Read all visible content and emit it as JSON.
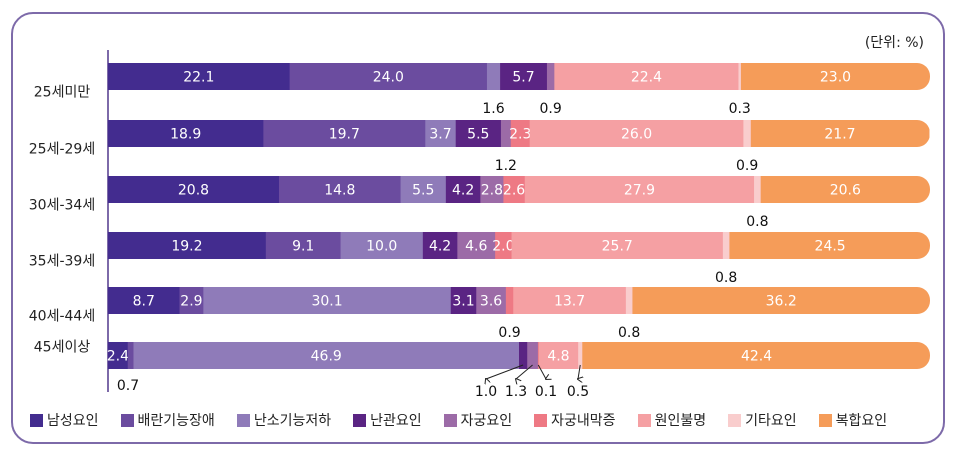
{
  "chart_data": {
    "type": "bar",
    "orientation": "horizontal",
    "stacked": true,
    "unit_label": "(단위: %)",
    "categories": [
      "25세미만",
      "25세-29세",
      "30세-34세",
      "35세-39세",
      "40세-44세",
      "45세이상"
    ],
    "series": [
      {
        "name": "남성요인",
        "color": "#432c8f",
        "values": [
          22.1,
          18.9,
          20.8,
          19.2,
          8.7,
          2.4
        ]
      },
      {
        "name": "배란기능장애",
        "color": "#6b4c9f",
        "values": [
          24.0,
          19.7,
          14.8,
          9.1,
          2.9,
          0.7
        ]
      },
      {
        "name": "난소기능저하",
        "color": "#8f7bb9",
        "values": [
          1.6,
          3.7,
          5.5,
          10.0,
          30.1,
          46.9
        ]
      },
      {
        "name": "난관요인",
        "color": "#5a2483",
        "values": [
          5.7,
          5.5,
          4.2,
          4.2,
          3.1,
          1.0
        ]
      },
      {
        "name": "자궁요인",
        "color": "#9c6ba7",
        "values": [
          0.9,
          1.2,
          2.8,
          4.6,
          3.6,
          1.3
        ]
      },
      {
        "name": "자궁내막증",
        "color": "#ee7984",
        "values": [
          0,
          2.3,
          2.6,
          2.0,
          0.9,
          0.1
        ]
      },
      {
        "name": "원인불명",
        "color": "#f5a0a3",
        "values": [
          22.4,
          26.0,
          27.9,
          25.7,
          13.7,
          4.8
        ]
      },
      {
        "name": "기타요인",
        "color": "#f9cdcd",
        "values": [
          0.3,
          0.9,
          0.8,
          0.8,
          0.8,
          0.5
        ]
      },
      {
        "name": "복합요인",
        "color": "#f59c59",
        "values": [
          23.0,
          21.7,
          20.6,
          24.5,
          36.2,
          42.4
        ]
      }
    ],
    "xlim": [
      0,
      100
    ],
    "grid": false,
    "legend_position": "bottom"
  }
}
